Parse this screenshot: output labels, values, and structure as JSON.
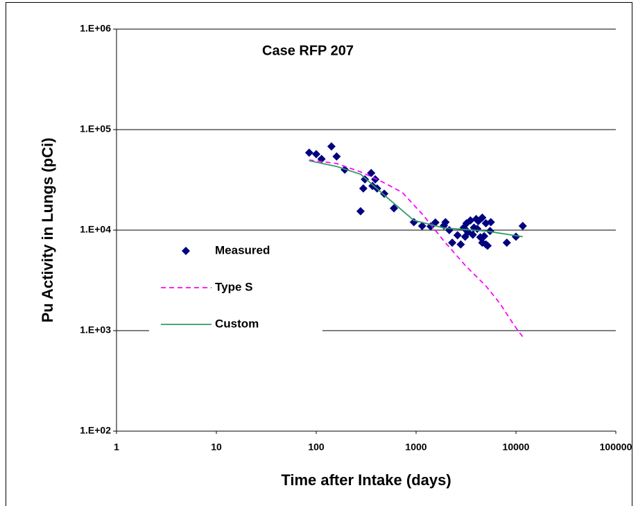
{
  "chart_data": {
    "type": "scatter",
    "title": "Case RFP 207",
    "x_label": "Time after Intake (days)",
    "y_label": "Pu Activity in Lungs (pCi)",
    "log_x": true,
    "log_y": true,
    "grid": true,
    "legend": "left",
    "xlim": [
      1,
      100000
    ],
    "ylim": [
      100,
      1000000
    ],
    "xticks": [
      1,
      10,
      100,
      1000,
      10000,
      100000
    ],
    "yticks": [
      {
        "value": 100,
        "label": "1.E+02"
      },
      {
        "value": 1000,
        "label": "1.E+03"
      },
      {
        "value": 10000,
        "label": "1.E+04"
      },
      {
        "value": 100000,
        "label": "1.E+05"
      },
      {
        "value": 1000000,
        "label": "1.E+06"
      }
    ],
    "series": [
      {
        "name": "Measured",
        "color": "#000080",
        "mode": "markers",
        "x": [
          85,
          100,
          113,
          142,
          160,
          193,
          278,
          296,
          307,
          355,
          366,
          390,
          407,
          480,
          600,
          950,
          1150,
          1400,
          1560,
          1900,
          1970,
          2150,
          2300,
          2600,
          2800,
          3000,
          3100,
          3200,
          3300,
          3500,
          3700,
          3800,
          4000,
          4100,
          4200,
          4400,
          4600,
          4600,
          4800,
          5000,
          5000,
          5200,
          5500,
          5600,
          8100,
          10000,
          11700
        ],
        "values": [
          59000,
          57000,
          51000,
          68000,
          54000,
          40000,
          15400,
          26000,
          32000,
          37000,
          27500,
          32000,
          26000,
          23000,
          16500,
          12000,
          11000,
          10900,
          11900,
          11100,
          12000,
          10000,
          7500,
          8900,
          7200,
          10600,
          8600,
          11700,
          9600,
          12500,
          9000,
          10600,
          12900,
          10300,
          12300,
          8500,
          13300,
          7500,
          8700,
          7200,
          11700,
          7000,
          9800,
          12000,
          7500,
          8600,
          11000
        ]
      },
      {
        "name": "Type S",
        "color": "#ff00ff",
        "mode": "dashed",
        "x": [
          85,
          160,
          278,
          450,
          725,
          1170,
          1900,
          3100,
          5000,
          6900,
          9600,
          12200
        ],
        "values": [
          49800,
          46000,
          38000,
          30500,
          23800,
          14200,
          7800,
          4460,
          2780,
          1870,
          1130,
          820
        ]
      },
      {
        "name": "Custom",
        "color": "#339966",
        "mode": "lines",
        "x": [
          85,
          160,
          278,
          530,
          950,
          1900,
          5000,
          11700
        ],
        "values": [
          49000,
          43000,
          36000,
          20500,
          12500,
          10500,
          9800,
          8600
        ]
      }
    ]
  }
}
